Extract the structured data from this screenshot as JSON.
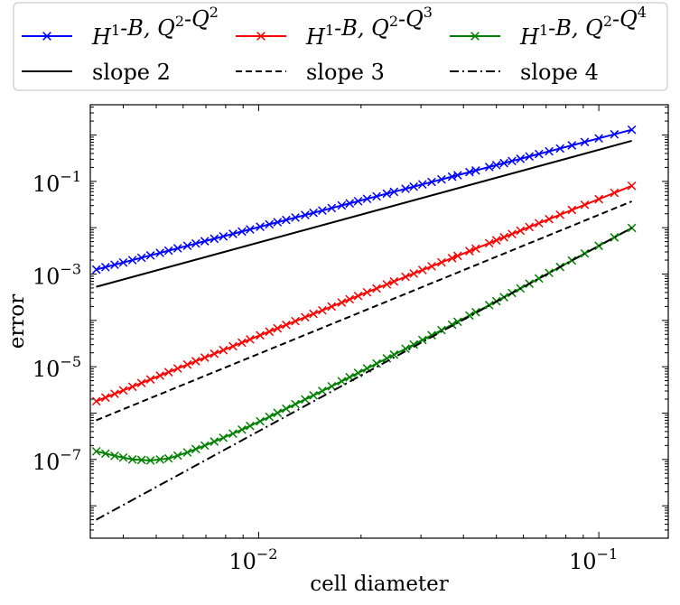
{
  "chart_data": {
    "type": "line",
    "scale": "log-log",
    "xlabel": "cell diameter",
    "ylabel": "error",
    "xlim": [
      0.0032,
      0.16
    ],
    "ylim": [
      2e-09,
      4.5
    ],
    "xticks": [
      {
        "value": 0.01,
        "base": "10",
        "exp": "−2"
      },
      {
        "value": 0.1,
        "base": "10",
        "exp": "−1"
      }
    ],
    "yticks": [
      {
        "value": 0.1,
        "base": "10",
        "exp": "−1"
      },
      {
        "value": 0.001,
        "base": "10",
        "exp": "−3"
      },
      {
        "value": 1e-05,
        "base": "10",
        "exp": "−5"
      },
      {
        "value": 1e-07,
        "base": "10",
        "exp": "−7"
      }
    ],
    "legend": {
      "placement": "top, above plot",
      "entries": [
        {
          "id": "q2",
          "text": "H1-B, Q2-Q2",
          "color": "#0000ff",
          "dash": "solid",
          "marker": "x"
        },
        {
          "id": "q3",
          "text": "H1-B, Q2-Q3",
          "color": "#ff0000",
          "dash": "solid",
          "marker": "x"
        },
        {
          "id": "q4",
          "text": "H1-B, Q2-Q4",
          "color": "#008000",
          "dash": "solid",
          "marker": "x"
        },
        {
          "id": "s2",
          "text": "slope 2",
          "color": "#000000",
          "dash": "solid",
          "marker": "none"
        },
        {
          "id": "s3",
          "text": "slope 3",
          "color": "#000000",
          "dash": "dashed",
          "marker": "none"
        },
        {
          "id": "s4",
          "text": "slope 4",
          "color": "#000000",
          "dash": "dashdot",
          "marker": "none"
        }
      ]
    },
    "h_range": {
      "max": 0.125,
      "min": 0.00333,
      "points": 60
    },
    "series": [
      {
        "name": "H1-B, Q2-Q2",
        "color": "#0000ff",
        "marker": "x",
        "dash": "solid",
        "h": [
          0.00333,
          0.125
        ],
        "error": [
          0.00125,
          1.3
        ]
      },
      {
        "name": "H1-B, Q2-Q3",
        "color": "#ff0000",
        "marker": "x",
        "dash": "solid",
        "h": [
          0.00333,
          0.125
        ],
        "error": [
          1.8e-06,
          0.08
        ]
      },
      {
        "name": "H1-B, Q2-Q4",
        "color": "#008000",
        "marker": "x",
        "dash": "solid",
        "h": [
          0.00333,
          0.00377,
          0.00426,
          0.00481,
          0.00544,
          0.00615,
          0.00695,
          0.00785,
          0.00887,
          0.01003,
          0.01133,
          0.0128,
          0.01447,
          0.01635,
          0.01848,
          0.02089,
          0.02361,
          0.02668,
          0.03015,
          0.03408,
          0.03851,
          0.04352,
          0.04918,
          0.0625,
          0.0833,
          0.125
        ],
        "error": [
          1.5e-07,
          1.2e-07,
          1e-07,
          9.5e-08,
          1.05e-07,
          1.4e-07,
          2e-07,
          2.9e-07,
          4.3e-07,
          6.5e-07,
          1e-06,
          1.55e-06,
          2.4e-06,
          3.75e-06,
          5.9e-06,
          9.3e-06,
          1.47e-05,
          2.33e-05,
          3.7e-05,
          5.9e-05,
          9.4e-05,
          0.000151,
          0.000243,
          0.00062,
          0.00196,
          0.0099
        ]
      },
      {
        "name": "slope 2",
        "color": "#000000",
        "dash": "solid",
        "h": [
          0.00333,
          0.125
        ],
        "error": [
          0.00053,
          0.75
        ]
      },
      {
        "name": "slope 3",
        "color": "#000000",
        "dash": "dashed",
        "h": [
          0.00333,
          0.125
        ],
        "error": [
          7e-07,
          0.037
        ]
      },
      {
        "name": "slope 4",
        "color": "#000000",
        "dash": "dashdot",
        "h": [
          0.00333,
          0.125
        ],
        "error": [
          5e-09,
          0.0099
        ]
      }
    ]
  }
}
